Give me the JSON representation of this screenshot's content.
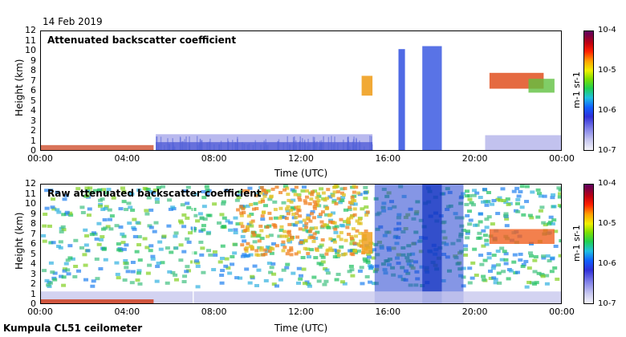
{
  "header": {
    "date": "14 Feb 2019"
  },
  "footer": {
    "station": "Kumpula CL51 ceilometer"
  },
  "chart_data": [
    {
      "type": "heatmap",
      "title": "Attenuated backscatter coefficient",
      "xlabel": "Time (UTC)",
      "ylabel": "Height (km)",
      "xticks": [
        "00:00",
        "04:00",
        "08:00",
        "12:00",
        "16:00",
        "20:00",
        "00:00"
      ],
      "yticks": [
        "0",
        "1",
        "2",
        "3",
        "4",
        "5",
        "6",
        "7",
        "8",
        "9",
        "10",
        "11",
        "12"
      ],
      "xlim_hours": [
        0,
        24
      ],
      "ylim_km": [
        0,
        12
      ],
      "colorbar": {
        "label": "m-1 sr-1",
        "ticks": [
          "10-7",
          "10-6",
          "10-5",
          "10-4"
        ],
        "scale": "log",
        "range": [
          1e-07,
          0.0001
        ]
      }
    },
    {
      "type": "heatmap",
      "title": "Raw attenuated backscatter coefficient",
      "xlabel": "Time (UTC)",
      "ylabel": "Height (km)",
      "xticks": [
        "00:00",
        "04:00",
        "08:00",
        "12:00",
        "16:00",
        "20:00",
        "00:00"
      ],
      "yticks": [
        "0",
        "1",
        "2",
        "3",
        "4",
        "5",
        "6",
        "7",
        "8",
        "9",
        "10",
        "11",
        "12"
      ],
      "xlim_hours": [
        0,
        24
      ],
      "ylim_km": [
        0,
        12
      ],
      "colorbar": {
        "label": "m-1 sr-1",
        "ticks": [
          "10-7",
          "10-6",
          "10-5",
          "10-4"
        ],
        "scale": "log",
        "range": [
          1e-07,
          0.0001
        ]
      }
    }
  ]
}
